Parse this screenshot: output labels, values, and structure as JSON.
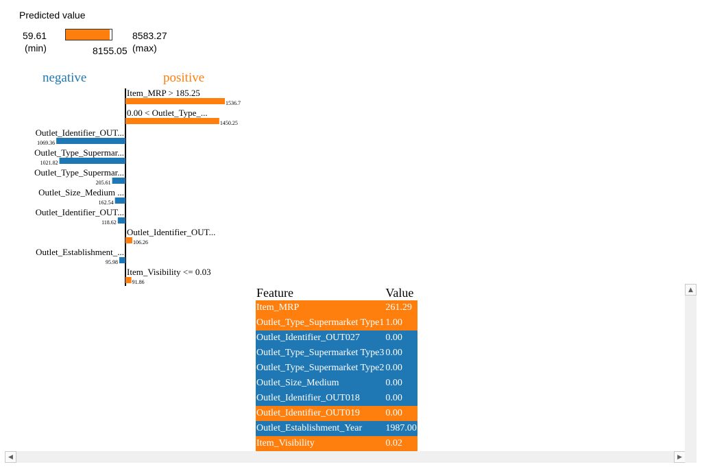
{
  "predicted": {
    "title": "Predicted value",
    "min": "59.61",
    "min_label": "(min)",
    "max": "8583.27",
    "max_label": "(max)",
    "value": "8155.05",
    "min_num": 59.61,
    "max_num": 8583.27,
    "value_num": 8155.05,
    "bar_color": "#ff7f0e"
  },
  "chart_data": {
    "type": "bar",
    "orientation": "horizontal",
    "negative_label": "negative",
    "positive_label": "positive",
    "colors": {
      "positive": "#ff7f0e",
      "negative": "#1f77b4"
    },
    "max_abs": 1536.7,
    "bars": [
      {
        "feature": "Item_MRP > 185.25",
        "value": 1536.7,
        "value_label": "1536.7",
        "sign": "positive"
      },
      {
        "feature": "0.00 < Outlet_Type_...",
        "value": 1450.25,
        "value_label": "1450.25",
        "sign": "positive"
      },
      {
        "feature": "Outlet_Identifier_OUT...",
        "value": 1069.36,
        "value_label": "1069.36",
        "sign": "negative"
      },
      {
        "feature": "Outlet_Type_Supermar...",
        "value": 1021.82,
        "value_label": "1021.82",
        "sign": "negative"
      },
      {
        "feature": "Outlet_Type_Supermar...",
        "value": 205.61,
        "value_label": "205.61",
        "sign": "negative"
      },
      {
        "feature": "Outlet_Size_Medium ...",
        "value": 162.54,
        "value_label": "162.54",
        "sign": "negative"
      },
      {
        "feature": "Outlet_Identifier_OUT...",
        "value": 118.62,
        "value_label": "118.62",
        "sign": "negative"
      },
      {
        "feature": "Outlet_Identifier_OUT...",
        "value": 106.26,
        "value_label": "106.26",
        "sign": "positive"
      },
      {
        "feature": "Outlet_Establishment_...",
        "value": 95.98,
        "value_label": "95.98",
        "sign": "negative"
      },
      {
        "feature": "Item_Visibility <= 0.03",
        "value": 91.86,
        "value_label": "91.86",
        "sign": "positive"
      }
    ]
  },
  "table": {
    "headers": {
      "feature": "Feature",
      "value": "Value"
    },
    "rows": [
      {
        "feature": "Item_MRP",
        "value": "261.29",
        "sign": "positive"
      },
      {
        "feature": "Outlet_Type_Supermarket Type1",
        "value": "1.00",
        "sign": "positive"
      },
      {
        "feature": "Outlet_Identifier_OUT027",
        "value": "0.00",
        "sign": "negative"
      },
      {
        "feature": "Outlet_Type_Supermarket Type3",
        "value": "0.00",
        "sign": "negative"
      },
      {
        "feature": "Outlet_Type_Supermarket Type2",
        "value": "0.00",
        "sign": "negative"
      },
      {
        "feature": "Outlet_Size_Medium",
        "value": "0.00",
        "sign": "negative"
      },
      {
        "feature": "Outlet_Identifier_OUT018",
        "value": "0.00",
        "sign": "negative"
      },
      {
        "feature": "Outlet_Identifier_OUT019",
        "value": "0.00",
        "sign": "positive"
      },
      {
        "feature": "Outlet_Establishment_Year",
        "value": "1987.00",
        "sign": "negative"
      },
      {
        "feature": "Item_Visibility",
        "value": "0.02",
        "sign": "positive"
      }
    ]
  },
  "scrollbars": {
    "up_icon": "arrow-up-icon",
    "left_icon": "arrow-left-icon",
    "right_icon": "arrow-right-icon"
  }
}
